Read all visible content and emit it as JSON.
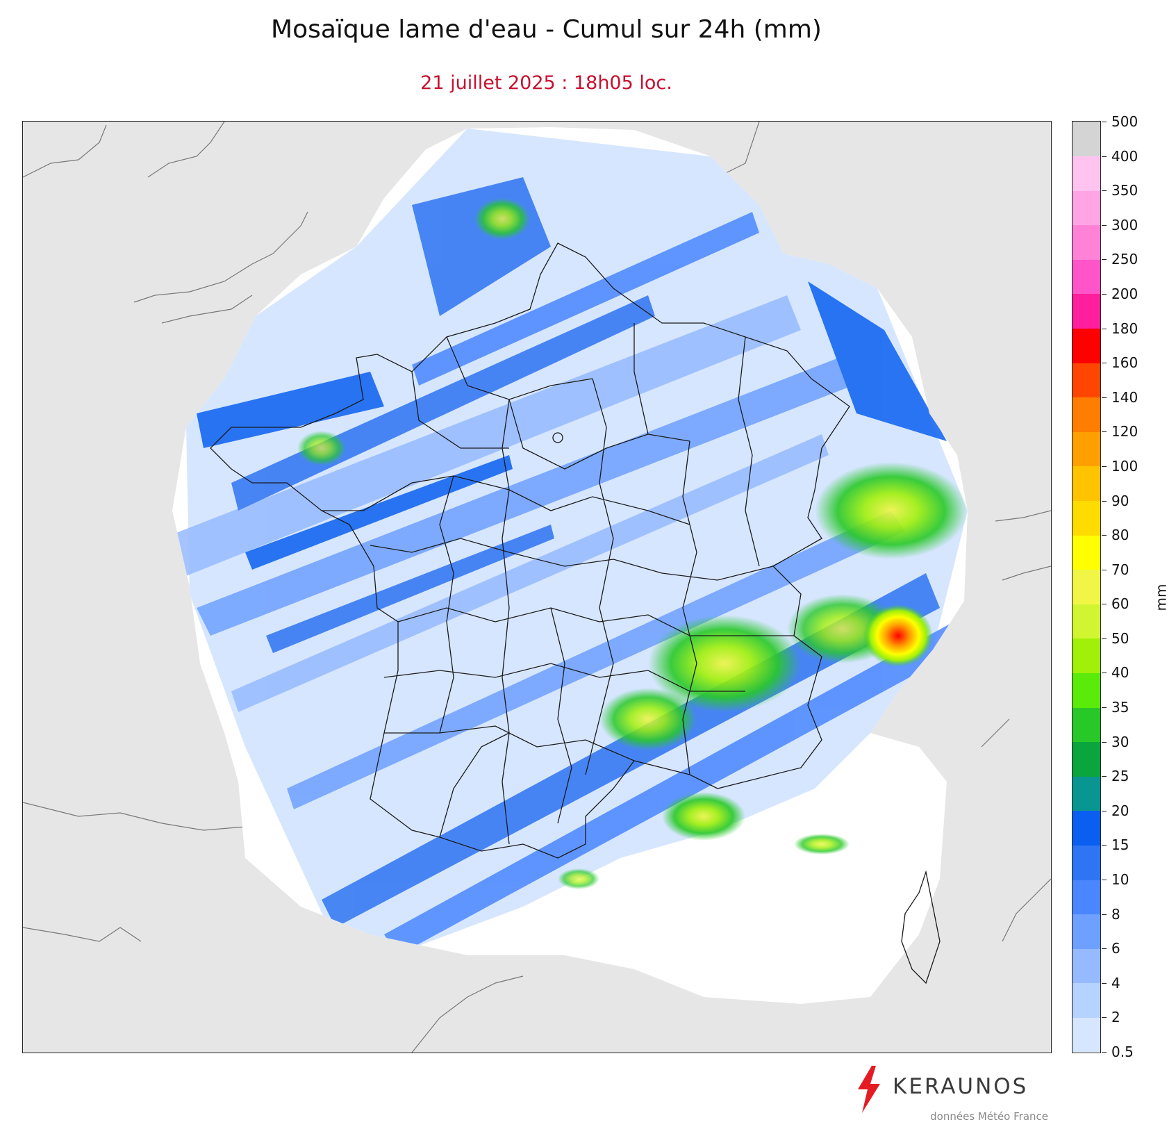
{
  "title": "Mosaïque lame d'eau - Cumul sur 24h (mm)",
  "subtitle": "21 juillet 2025 : 18h05 loc.",
  "colorbar": {
    "unit": "mm",
    "levels": [
      {
        "value": "0.5",
        "color": "#d6e6ff"
      },
      {
        "value": "2",
        "color": "#b6d2ff"
      },
      {
        "value": "4",
        "color": "#96baff"
      },
      {
        "value": "6",
        "color": "#6ea0ff"
      },
      {
        "value": "8",
        "color": "#4a86ff"
      },
      {
        "value": "10",
        "color": "#2f74f2"
      },
      {
        "value": "15",
        "color": "#0a5ff0"
      },
      {
        "value": "20",
        "color": "#0a9690"
      },
      {
        "value": "25",
        "color": "#0aa53c"
      },
      {
        "value": "30",
        "color": "#28c828"
      },
      {
        "value": "35",
        "color": "#5aeb0a"
      },
      {
        "value": "40",
        "color": "#a0f00a"
      },
      {
        "value": "50",
        "color": "#d2f532"
      },
      {
        "value": "60",
        "color": "#f0f546"
      },
      {
        "value": "70",
        "color": "#ffff00"
      },
      {
        "value": "80",
        "color": "#ffdc00"
      },
      {
        "value": "90",
        "color": "#ffc300"
      },
      {
        "value": "100",
        "color": "#ffa000"
      },
      {
        "value": "120",
        "color": "#ff7d00"
      },
      {
        "value": "140",
        "color": "#ff4600"
      },
      {
        "value": "160",
        "color": "#ff0000"
      },
      {
        "value": "180",
        "color": "#ff1e9b"
      },
      {
        "value": "200",
        "color": "#ff55c8"
      },
      {
        "value": "250",
        "color": "#ff82d7"
      },
      {
        "value": "300",
        "color": "#ffa5e6"
      },
      {
        "value": "350",
        "color": "#ffc3f0"
      },
      {
        "value": "400",
        "color": "#ffdcf5"
      },
      {
        "value": "500",
        "color": "#ffeefa"
      }
    ],
    "over_color": "#d4d4d4"
  },
  "logo": {
    "brand": "KERAUNOS",
    "source": "données Météo France",
    "brand_color": "#e41b23"
  },
  "map": {
    "land_color": "#e6e6e6",
    "radar_background_color": "#ffffff",
    "border_color": "#1a1a1a"
  }
}
